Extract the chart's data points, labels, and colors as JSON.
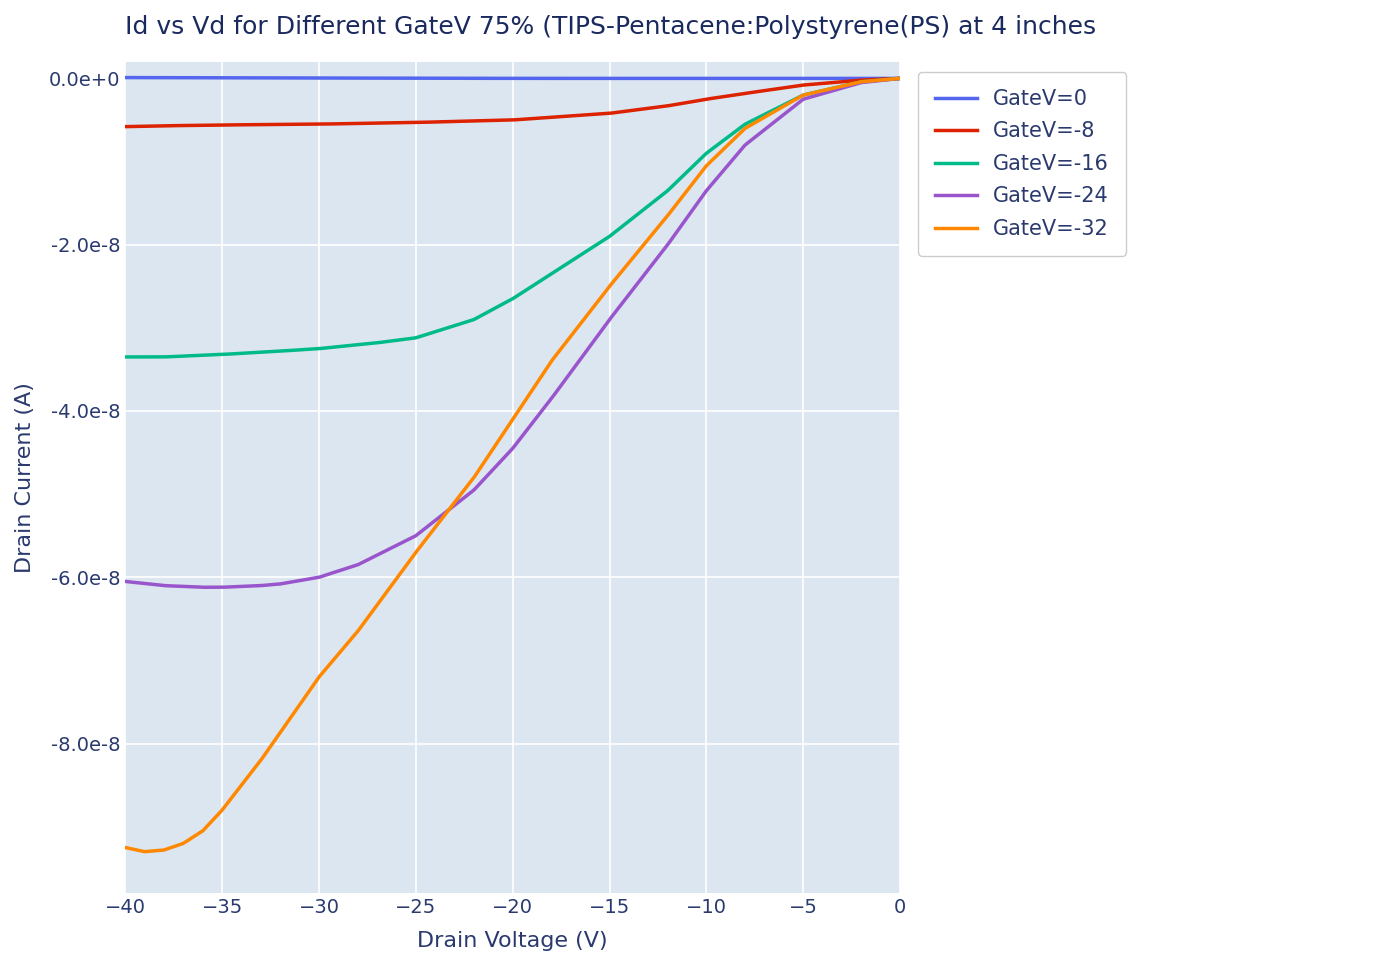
{
  "title": "Id vs Vd for Different GateV 75% (TIPS-Pentacene:Polystyrene(PS) at 4 inches",
  "xlabel": "Drain Voltage (V)",
  "ylabel": "Drain Current (A)",
  "background_color": "#dce6f1",
  "fig_background": "#ffffff",
  "xlim": [
    -40,
    0
  ],
  "ylim": [
    -9.8e-08,
    2e-09
  ],
  "title_color": "#1a2a5e",
  "axis_color": "#2a3a6e",
  "grid_color": "#ffffff",
  "series": [
    {
      "label": "GateV=0",
      "color": "#5566ee",
      "vd": [
        -40,
        -35,
        -30,
        -25,
        -20,
        -15,
        -10,
        -5,
        0
      ],
      "id": [
        1e-10,
        8e-11,
        5e-11,
        2e-11,
        5e-12,
        1e-12,
        5e-13,
        1e-13,
        0
      ]
    },
    {
      "label": "GateV=-8",
      "color": "#dd2200",
      "vd": [
        -40,
        -38,
        -35,
        -30,
        -25,
        -20,
        -15,
        -12,
        -10,
        -8,
        -5,
        -2,
        0
      ],
      "id": [
        -5.8e-09,
        -5.7e-09,
        -5.6e-09,
        -5.5e-09,
        -5.3e-09,
        -5e-09,
        -4.2e-09,
        -3.3e-09,
        -2.5e-09,
        -1.8e-09,
        -8e-10,
        -2e-10,
        0
      ]
    },
    {
      "label": "GateV=-16",
      "color": "#00bb88",
      "vd": [
        -40,
        -38,
        -36,
        -35,
        -32,
        -30,
        -27,
        -25,
        -22,
        -20,
        -17,
        -15,
        -12,
        -10,
        -8,
        -5,
        -2,
        0
      ],
      "id": [
        -3.35e-08,
        -3.35e-08,
        -3.33e-08,
        -3.32e-08,
        -3.28e-08,
        -3.25e-08,
        -3.18e-08,
        -3.12e-08,
        -2.9e-08,
        -2.65e-08,
        -2.2e-08,
        -1.9e-08,
        -1.35e-08,
        -9e-09,
        -5.5e-09,
        -2e-09,
        -4e-10,
        0
      ]
    },
    {
      "label": "GateV=-24",
      "color": "#9955cc",
      "vd": [
        -40,
        -38,
        -36,
        -35,
        -33,
        -32,
        -30,
        -28,
        -25,
        -22,
        -20,
        -18,
        -15,
        -12,
        -10,
        -8,
        -5,
        -2,
        0
      ],
      "id": [
        -6.05e-08,
        -6.1e-08,
        -6.12e-08,
        -6.12e-08,
        -6.1e-08,
        -6.08e-08,
        -6e-08,
        -5.85e-08,
        -5.5e-08,
        -4.95e-08,
        -4.45e-08,
        -3.85e-08,
        -2.9e-08,
        -2e-08,
        -1.35e-08,
        -8e-09,
        -2.5e-09,
        -5e-10,
        0
      ]
    },
    {
      "label": "GateV=-32",
      "color": "#ff8800",
      "vd": [
        -40,
        -39,
        -38,
        -37,
        -36,
        -35,
        -33,
        -30,
        -28,
        -25,
        -22,
        -20,
        -18,
        -15,
        -12,
        -10,
        -8,
        -5,
        -2,
        0
      ],
      "id": [
        -9.25e-08,
        -9.3e-08,
        -9.28e-08,
        -9.2e-08,
        -9.05e-08,
        -8.8e-08,
        -8.2e-08,
        -7.2e-08,
        -6.65e-08,
        -5.7e-08,
        -4.8e-08,
        -4.1e-08,
        -3.4e-08,
        -2.5e-08,
        -1.65e-08,
        -1.05e-08,
        -6e-09,
        -2e-09,
        -4e-10,
        0
      ]
    }
  ],
  "yticks": [
    0.0,
    -2e-08,
    -4e-08,
    -6e-08,
    -8e-08
  ],
  "xticks": [
    -40,
    -35,
    -30,
    -25,
    -20,
    -15,
    -10,
    -5,
    0
  ],
  "legend_fontsize": 15,
  "title_fontsize": 18,
  "axis_label_fontsize": 16,
  "tick_fontsize": 14
}
